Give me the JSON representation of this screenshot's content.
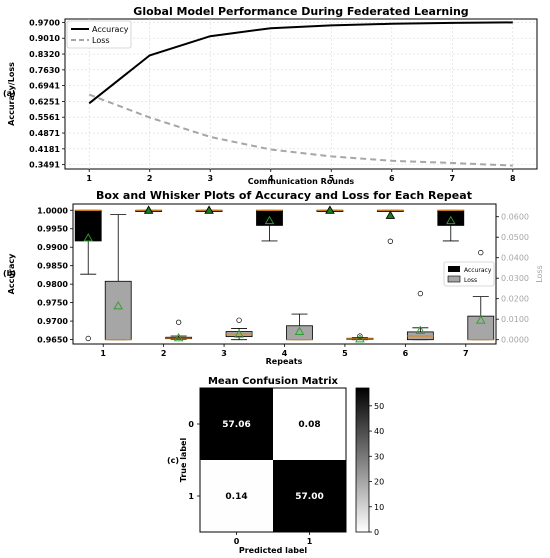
{
  "chart_data": [
    {
      "panel_label": "(a)",
      "type": "line",
      "title": "Global Model Performance During Federated Learning",
      "xlabel": "Communication Rounds",
      "ylabel": "Accuracy/Loss",
      "x": [
        1,
        2,
        3,
        4,
        5,
        6,
        7,
        8
      ],
      "xticks": [
        "1",
        "2",
        "3",
        "4",
        "5",
        "6",
        "7",
        "8"
      ],
      "yticks": [
        0.3491,
        0.4181,
        0.4871,
        0.5561,
        0.6251,
        0.6941,
        0.763,
        0.832,
        0.901,
        0.97
      ],
      "ytick_labels": [
        "0.3491",
        "0.4181",
        "0.4871",
        "0.5561",
        "0.6251",
        "0.6941",
        "0.7630",
        "0.8320",
        "0.9010",
        "0.9700"
      ],
      "ylim": [
        0.33,
        0.985
      ],
      "grid": true,
      "legend_position": "top-left",
      "series": [
        {
          "name": "Accuracy",
          "color": "#000000",
          "style": "solid",
          "values": [
            0.617,
            0.826,
            0.91,
            0.945,
            0.957,
            0.964,
            0.968,
            0.97
          ]
        },
        {
          "name": "Loss",
          "color": "#a6a6a6",
          "style": "dashed",
          "values": [
            0.655,
            0.555,
            0.47,
            0.415,
            0.385,
            0.366,
            0.356,
            0.345
          ]
        }
      ]
    },
    {
      "panel_label": "(b)",
      "type": "box",
      "title": "Box and Whisker Plots of Accuracy and Loss for Each Repeat",
      "xlabel": "Repeats",
      "ylabel": "Accuracy",
      "y2label": "Loss",
      "categories": [
        "1",
        "2",
        "3",
        "4",
        "5",
        "6",
        "7"
      ],
      "ylim": [
        0.9638,
        1.0017
      ],
      "y2lim": [
        -0.0021,
        0.0662
      ],
      "yticks": [
        "0.9650",
        "0.9700",
        "0.9750",
        "0.9800",
        "0.9850",
        "0.9900",
        "0.9950",
        "1.0000"
      ],
      "y2ticks": [
        "0.0000",
        "0.0100",
        "0.0200",
        "0.0300",
        "0.0400",
        "0.0500",
        "0.0600"
      ],
      "legend_position": "center-right",
      "series": [
        {
          "name": "Accuracy",
          "color": "#000000",
          "axis": "left",
          "boxes": [
            {
              "whislo": 0.9827,
              "q1": 0.9917,
              "med": 1.0,
              "q3": 1.0,
              "whishi": 1.0,
              "mean": 0.9925,
              "fliers": [
                0.9653
              ]
            },
            {
              "whislo": 1.0,
              "q1": 1.0,
              "med": 1.0,
              "q3": 1.0,
              "whishi": 1.0,
              "mean": 1.0,
              "fliers": []
            },
            {
              "whislo": 1.0,
              "q1": 1.0,
              "med": 1.0,
              "q3": 1.0,
              "whishi": 1.0,
              "mean": 1.0,
              "fliers": []
            },
            {
              "whislo": 0.9917,
              "q1": 0.9959,
              "med": 1.0,
              "q3": 1.0,
              "whishi": 1.0,
              "mean": 0.9972,
              "fliers": []
            },
            {
              "whislo": 1.0,
              "q1": 1.0,
              "med": 1.0,
              "q3": 1.0,
              "whishi": 1.0,
              "mean": 1.0,
              "fliers": []
            },
            {
              "whislo": 1.0,
              "q1": 1.0,
              "med": 1.0,
              "q3": 1.0,
              "whishi": 1.0,
              "mean": 0.9986,
              "fliers": [
                0.9916
              ]
            },
            {
              "whislo": 0.9917,
              "q1": 0.9959,
              "med": 1.0,
              "q3": 1.0,
              "whishi": 1.0,
              "mean": 0.9972,
              "fliers": []
            }
          ]
        },
        {
          "name": "Loss",
          "color": "#a6a6a6",
          "axis": "right",
          "boxes": [
            {
              "whislo": 0.0,
              "q1": 0.0,
              "med": 0.0,
              "q3": 0.0285,
              "whishi": 0.061,
              "mean": 0.0165,
              "fliers": []
            },
            {
              "whislo": 0.0002,
              "q1": 0.0005,
              "med": 0.0008,
              "q3": 0.0012,
              "whishi": 0.0018,
              "mean": 0.0009,
              "fliers": [
                0.0085
              ]
            },
            {
              "whislo": 0.0,
              "q1": 0.0015,
              "med": 0.0028,
              "q3": 0.004,
              "whishi": 0.0055,
              "mean": 0.0027,
              "fliers": [
                0.0095
              ]
            },
            {
              "whislo": 0.0,
              "q1": 0.0,
              "med": 0.0,
              "q3": 0.0068,
              "whishi": 0.0125,
              "mean": 0.004,
              "fliers": []
            },
            {
              "whislo": 0.0,
              "q1": 0.0002,
              "med": 0.0004,
              "q3": 0.0007,
              "whishi": 0.001,
              "mean": 0.0004,
              "fliers": [
                0.0018
              ]
            },
            {
              "whislo": 0.0,
              "q1": 0.0,
              "med": 0.0018,
              "q3": 0.0038,
              "whishi": 0.0058,
              "mean": 0.0045,
              "fliers": [
                0.0225
              ]
            },
            {
              "whislo": 0.0,
              "q1": 0.0,
              "med": 0.0,
              "q3": 0.0115,
              "whishi": 0.021,
              "mean": 0.0095,
              "fliers": [
                0.0425
              ]
            }
          ]
        }
      ]
    },
    {
      "panel_label": "(c)",
      "type": "heatmap",
      "title": "Mean Confusion Matrix",
      "xlabel": "Predicted label",
      "ylabel": "True label",
      "x_categories": [
        "0",
        "1"
      ],
      "y_categories": [
        "0",
        "1"
      ],
      "values": [
        [
          57.06,
          0.08
        ],
        [
          0.14,
          57.0
        ]
      ],
      "value_labels": [
        [
          "57.06",
          "0.08"
        ],
        [
          "0.14",
          "57.00"
        ]
      ],
      "colorbar_range": [
        0,
        57.06
      ],
      "colorbar_ticks": [
        "0",
        "10",
        "20",
        "30",
        "40",
        "50"
      ],
      "colormap": "Greys"
    }
  ]
}
